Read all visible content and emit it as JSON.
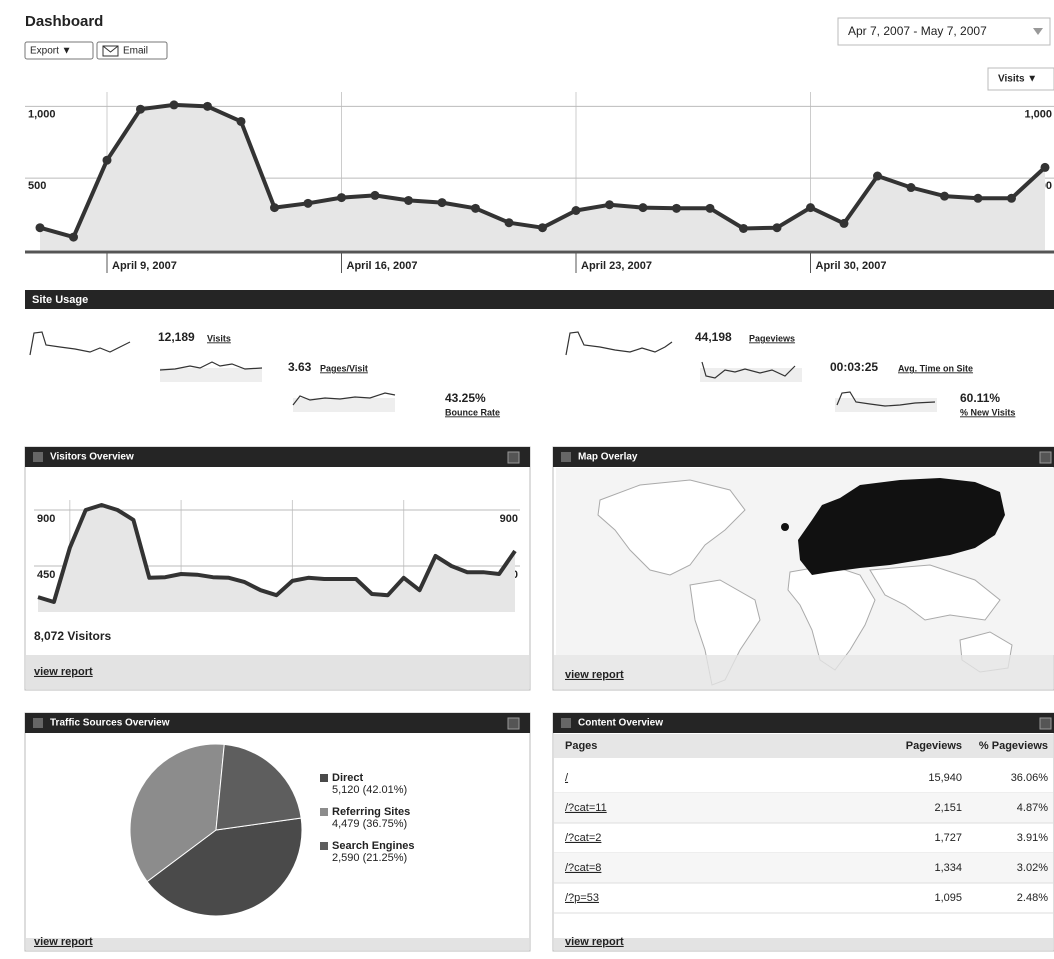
{
  "header": {
    "title": "Dashboard",
    "export": "Export ▼",
    "email": "Email",
    "date_range": "Apr 7, 2007 - May 7, 2007"
  },
  "main_chart": {
    "type": "line",
    "metric_menu": "Visits ▼",
    "categories": [
      null,
      null,
      "April 9, 2007",
      null,
      null,
      null,
      null,
      null,
      null,
      "April 16, 2007",
      null,
      null,
      null,
      null,
      null,
      null,
      "April 23, 2007",
      null,
      null,
      null,
      null,
      null,
      null,
      "April 30, 2007",
      null,
      null,
      null,
      null,
      null,
      null,
      null
    ],
    "values": [
      155,
      90,
      625,
      980,
      1010,
      1000,
      895,
      295,
      325,
      365,
      380,
      345,
      330,
      290,
      190,
      155,
      275,
      315,
      295,
      290,
      290,
      150,
      155,
      295,
      185,
      515,
      435,
      375,
      360,
      360,
      575
    ],
    "ylim": [
      0,
      1100
    ],
    "yticks": [
      500,
      {
        "value": 1000,
        "label": "1,000"
      }
    ],
    "color": "#333333",
    "grid": true
  },
  "site_usage": {
    "title": "Site Usage",
    "metrics": [
      {
        "value": "12,189",
        "label": "Visits"
      },
      {
        "value": "3.63",
        "label": "Pages/Visit"
      },
      {
        "value": "43.25%",
        "label": "Bounce Rate"
      },
      {
        "value": "44,198",
        "label": "Pageviews"
      },
      {
        "value": "00:03:25",
        "label": "Avg. Time on Site"
      },
      {
        "value": "60.11%",
        "label": "% New Visits"
      }
    ]
  },
  "visitors_overview": {
    "title": "Visitors Overview",
    "chart": {
      "type": "line",
      "values": [
        200,
        160,
        595,
        900,
        940,
        900,
        820,
        355,
        360,
        385,
        380,
        360,
        355,
        320,
        255,
        215,
        330,
        355,
        345,
        345,
        345,
        225,
        215,
        355,
        255,
        530,
        450,
        400,
        400,
        385,
        570
      ],
      "ylim": [
        80,
        980
      ],
      "yticks": [
        450,
        900
      ],
      "color": "#333333",
      "grid": true
    },
    "total": "8,072 Visitors",
    "link": "view report"
  },
  "map_overlay": {
    "title": "Map Overlay",
    "link": "view report"
  },
  "traffic_sources": {
    "title": "Traffic Sources Overview",
    "chart": {
      "type": "pie",
      "categories": [
        "Direct",
        "Referring Sites",
        "Search Engines"
      ],
      "values": [
        5120,
        4479,
        2590
      ],
      "value_labels": [
        "5,120 (42.01%)",
        "4,479 (36.75%)",
        "2,590 (21.25%)"
      ],
      "colors": [
        "#4a4a4a",
        "#8c8c8c",
        "#5e5e5e"
      ]
    },
    "link": "view report"
  },
  "content_overview": {
    "title": "Content Overview",
    "table": {
      "header": [
        "Pages",
        "Pageviews",
        "% Pageviews"
      ],
      "rows": [
        [
          "/",
          "15,940",
          "36.06%"
        ],
        [
          "/?cat=11",
          "2,151",
          "4.87%"
        ],
        [
          "/?cat=2",
          "1,727",
          "3.91%"
        ],
        [
          "/?cat=8",
          "1,334",
          "3.02%"
        ],
        [
          "/?p=53",
          "1,095",
          "2.48%"
        ]
      ]
    },
    "link": "view report"
  }
}
